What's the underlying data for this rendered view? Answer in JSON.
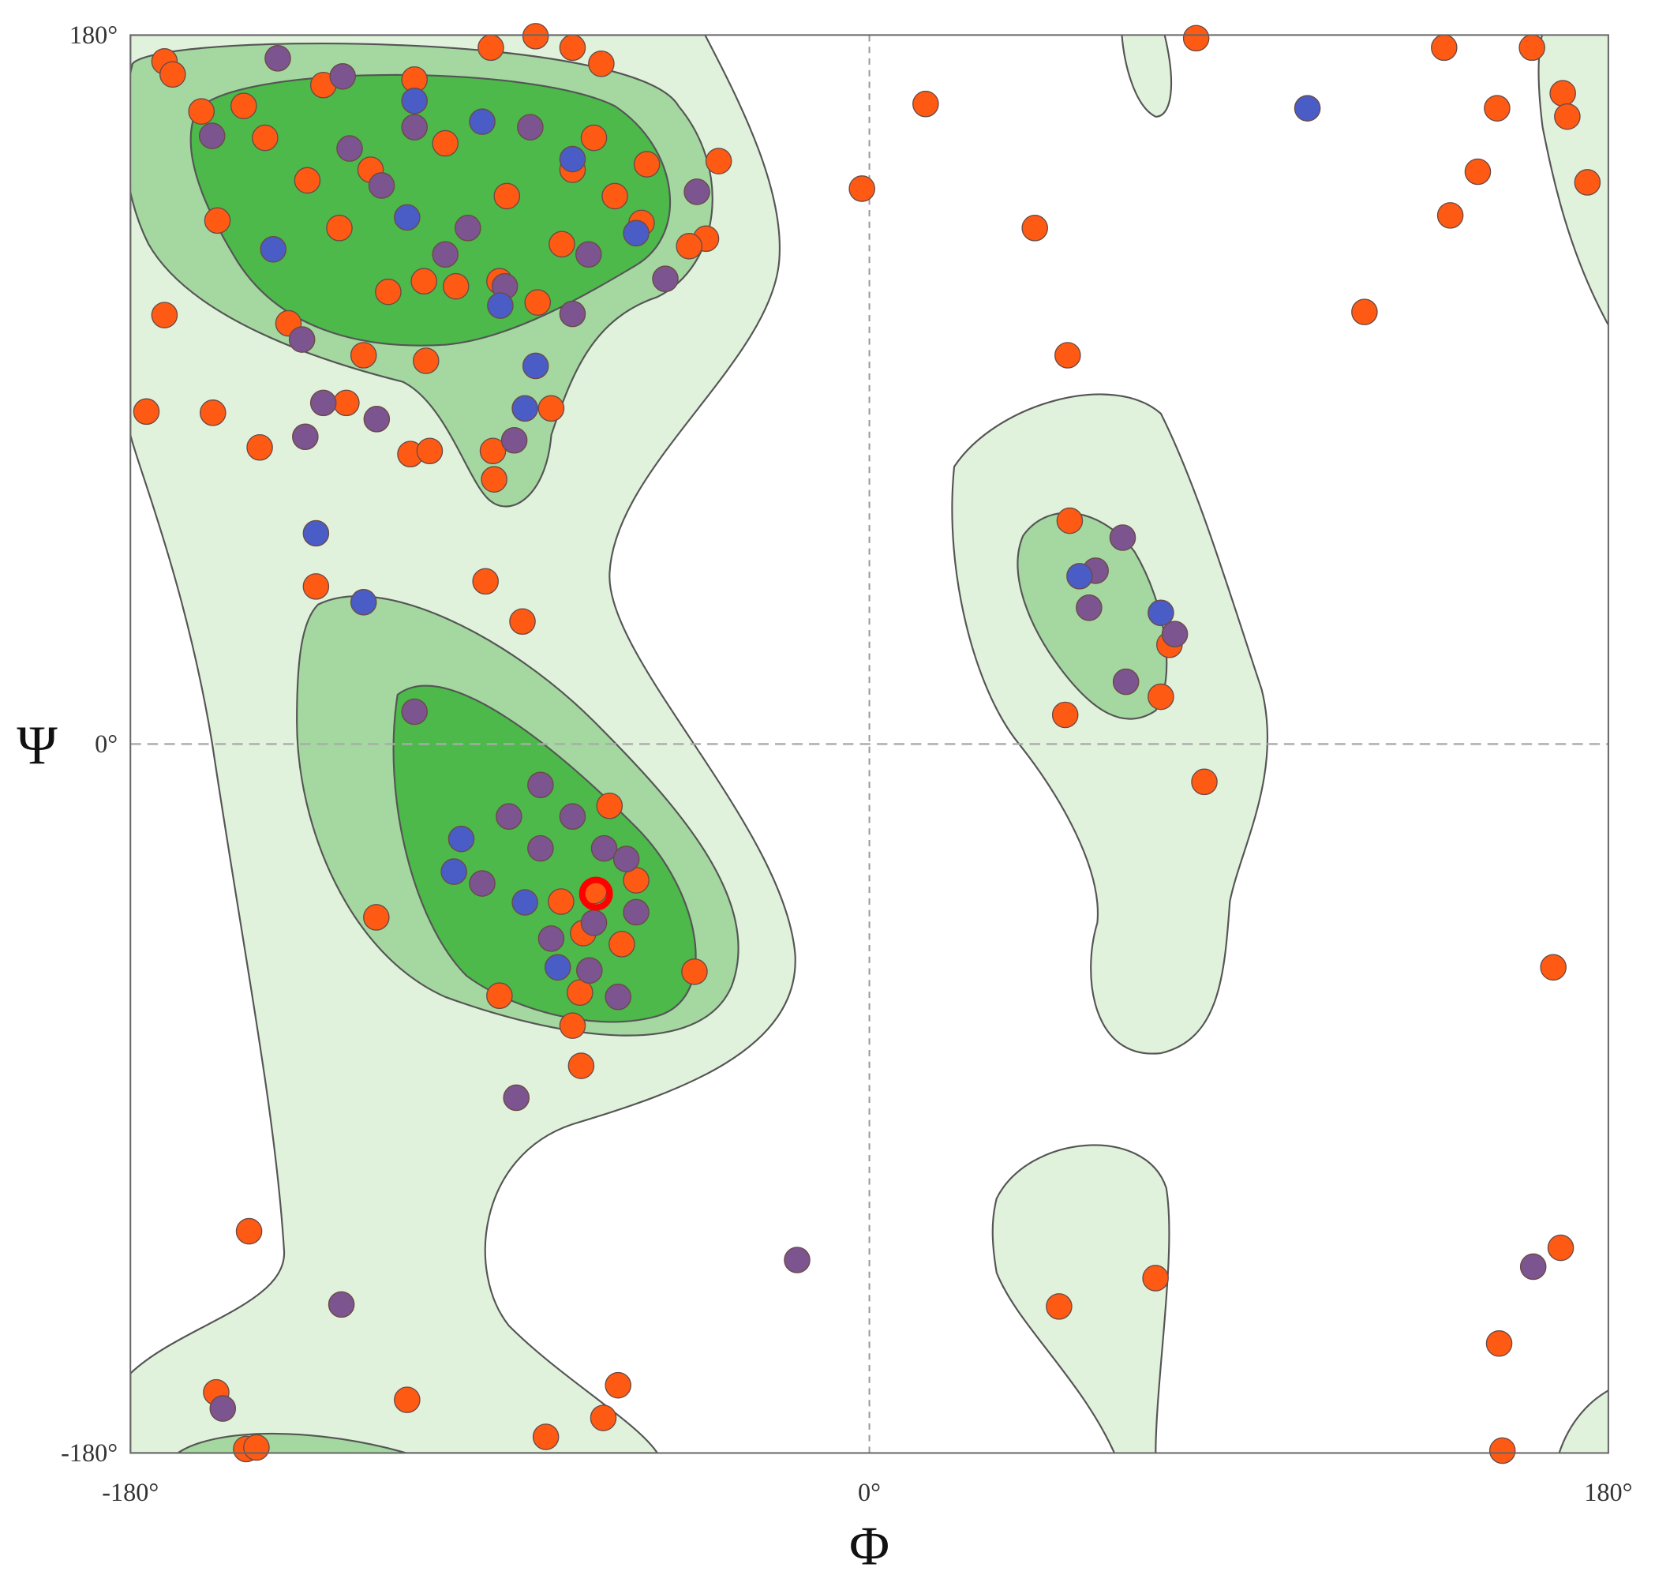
{
  "chart_data": {
    "type": "scatter",
    "xlabel": "Φ",
    "ylabel": "Ψ",
    "xlim": [
      -180,
      180
    ],
    "ylim": [
      -180,
      180
    ],
    "xticks": [
      {
        "value": -180,
        "label": "-180°"
      },
      {
        "value": 0,
        "label": "0°"
      },
      {
        "value": 180,
        "label": "180°"
      }
    ],
    "yticks": [
      {
        "value": -180,
        "label": "-180°"
      },
      {
        "value": 0,
        "label": "0°"
      },
      {
        "value": 180,
        "label": "180°"
      }
    ],
    "zero_lines": true,
    "series": [
      {
        "color": "#ff5a14",
        "x": [
          -171.7,
          -169.7,
          13.7,
          79.6,
          140,
          161.4,
          152.9,
          168.9,
          170,
          174.9,
          148.2,
          141.5,
          120.6,
          -1.8,
          40.3,
          48.3,
          -171.7,
          -176.1,
          -159.9,
          -148.5,
          -111.8,
          -107.1,
          -134.8,
          -93.5,
          -84.5,
          48.8,
          47.7,
          71,
          81.6,
          73.1,
          -120.1,
          -90.1,
          -70.5,
          -72.3,
          -70.2,
          -42.6,
          166.6,
          -151.1,
          69.7,
          46.2,
          168.4,
          153.4,
          154.2,
          -159.1,
          -112.6,
          -61.2,
          -64.8,
          -78.8,
          -151.8,
          -149.3,
          -36.7,
          -39.8,
          -43.9,
          -158.8,
          -162.7,
          -152.4,
          -141.5,
          -123.2,
          -127.4,
          -91.7,
          -91.4,
          -77.5,
          -81.3,
          -72.3,
          -92.2,
          -65.3,
          -110.8,
          -103.3,
          -67.1,
          -54.2,
          -55.5,
          -90.1,
          -100.7,
          -80.8,
          -108,
          -133,
          -121.5,
          -147.2,
          -136.9,
          -129.1,
          -74.9,
          -62,
          -88.3,
          -108.5,
          -117.2,
          -72.3,
          -63.3,
          -67.1,
          -69.7,
          -60.3,
          -75.1,
          -56.8
        ],
        "values": [
          173.3,
          170,
          162.5,
          179.2,
          176.8,
          176.8,
          161.4,
          165.2,
          159.3,
          142.6,
          145.3,
          134.2,
          109.7,
          141,
          131,
          98.7,
          108.9,
          84.4,
          84.1,
          75.3,
          73.6,
          74.4,
          40,
          41.3,
          31.1,
          56.7,
          7.4,
          12,
          -9.6,
          25.2,
          -44,
          -63.9,
          -63.1,
          -71.5,
          -81.7,
          -57.8,
          -56.7,
          -123.7,
          -135.6,
          -142.8,
          -127.9,
          -152.2,
          -179.4,
          -164.6,
          -166.5,
          -162.8,
          -171.1,
          -175.9,
          -179,
          -178.6,
          148,
          128.3,
          126.4,
          132.9,
          160.6,
          162,
          106.8,
          98.7,
          86.6,
          74.4,
          67.2,
          85.2,
          179.7,
          176.8,
          176.8,
          172.7,
          168.7,
          152.5,
          153.9,
          147.2,
          132.3,
          117.5,
          116.2,
          112.1,
          97.3,
          167.3,
          145.8,
          153.9,
          143.1,
          131,
          126.9,
          139.1,
          139.1,
          117.5,
          114.8,
          145.8,
          -15.7,
          -37.3,
          -48,
          -50.8,
          -40,
          -34.6
        ]
      },
      {
        "color": "#7b5490",
        "x": [
          -17.6,
          -86,
          -128.6,
          -157.5,
          161.7,
          61.7,
          53.5,
          55.1,
          62.5,
          74.4,
          -110.8,
          -61.2,
          -94.3,
          -87.8,
          -80.1,
          -72.3,
          -64.6,
          -67.1,
          -68.2,
          -77.5,
          -56.8,
          -59.2,
          -80.1,
          -144.1,
          -128.3,
          -120,
          -133,
          -137.4,
          -72.3,
          -49.7,
          -42,
          -160.1,
          -126.6,
          -110.8,
          -97.8,
          -88.8,
          -138.2,
          -68.4,
          -103.3,
          -118.8,
          -82.6,
          -86.5
        ],
        "values": [
          -131,
          -89.8,
          -142.3,
          -168.7,
          -132.7,
          52.4,
          34.6,
          44,
          15.8,
          27.9,
          8.2,
          -64.2,
          -35.4,
          -18.4,
          -10.4,
          -18.4,
          -26.5,
          -45.4,
          -57.5,
          -49.4,
          -42.7,
          -29.2,
          -26.5,
          174.1,
          169.5,
          82.5,
          86.6,
          78,
          109.2,
          118.1,
          140.2,
          154.4,
          151.2,
          156.6,
          131,
          116.2,
          102.7,
          124.3,
          124.3,
          141.8,
          156.6,
          77.1
        ]
      },
      {
        "color": "#4a5cc6",
        "x": [
          106.7,
          -134.8,
          -123.2,
          71,
          51.2,
          -99.4,
          -101.2,
          -83.9,
          -75.9,
          -112.6,
          -145.2,
          -94.3,
          -72.3,
          -81.3,
          -83.9,
          -89.9,
          -56.8,
          -110.8
        ],
        "values": [
          161.4,
          53.5,
          36,
          33.3,
          42.6,
          -24.1,
          -32.4,
          -40.2,
          -56.7,
          133.7,
          125.6,
          158,
          148.5,
          96,
          85.2,
          111.3,
          129.7,
          163.3
        ]
      },
      {
        "color": "#ff0000",
        "marker": "ring",
        "x": [
          -66.6
        ],
        "values": [
          -38
        ]
      }
    ]
  }
}
